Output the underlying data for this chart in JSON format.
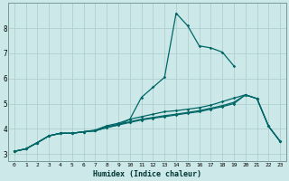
{
  "xlabel": "Humidex (Indice chaleur)",
  "bg_color": "#cce8e8",
  "line_color": "#006666",
  "grid_color": "#aacccc",
  "xlim": [
    -0.5,
    23.5
  ],
  "ylim": [
    2.7,
    9.0
  ],
  "xticks": [
    0,
    1,
    2,
    3,
    4,
    5,
    6,
    7,
    8,
    9,
    10,
    11,
    12,
    13,
    14,
    15,
    16,
    17,
    18,
    19,
    20,
    21,
    22,
    23
  ],
  "yticks": [
    3,
    4,
    5,
    6,
    7,
    8
  ],
  "line1_x": [
    0,
    1,
    2,
    3,
    4,
    5,
    6,
    7,
    8,
    9,
    10,
    11,
    12,
    13,
    14,
    15,
    16,
    17,
    18,
    19,
    20,
    21,
    22,
    23
  ],
  "line1_y": [
    3.1,
    3.2,
    3.45,
    3.72,
    3.82,
    3.82,
    3.88,
    3.92,
    4.05,
    4.15,
    4.25,
    4.35,
    4.42,
    4.48,
    4.55,
    4.62,
    4.68,
    4.78,
    4.88,
    5.0,
    5.35,
    5.2,
    4.1,
    3.5
  ],
  "line2_x": [
    0,
    1,
    2,
    3,
    4,
    5,
    6,
    7,
    8,
    9,
    10,
    11,
    12,
    13,
    14,
    15,
    16,
    17,
    18,
    19,
    20,
    21,
    22,
    23
  ],
  "line2_y": [
    3.1,
    3.2,
    3.45,
    3.72,
    3.82,
    3.82,
    3.88,
    3.92,
    4.05,
    4.15,
    4.38,
    5.25,
    5.65,
    6.05,
    8.6,
    8.1,
    7.3,
    7.22,
    7.05,
    6.5,
    null,
    null,
    null,
    null
  ],
  "line3_x": [
    0,
    1,
    2,
    3,
    4,
    5,
    6,
    7,
    8,
    9,
    10,
    11,
    12,
    13,
    14,
    15,
    16,
    17,
    18,
    19,
    20,
    21,
    22,
    23
  ],
  "line3_y": [
    3.1,
    3.2,
    3.45,
    3.72,
    3.82,
    3.82,
    3.88,
    3.92,
    4.08,
    4.18,
    4.28,
    4.38,
    4.45,
    4.52,
    4.58,
    4.65,
    4.72,
    4.82,
    4.92,
    5.05,
    5.35,
    5.2,
    4.1,
    3.5
  ],
  "line4_x": [
    0,
    1,
    2,
    3,
    4,
    5,
    6,
    7,
    8,
    9,
    10,
    11,
    12,
    13,
    14,
    15,
    16,
    17,
    18,
    19,
    20,
    21,
    22,
    23
  ],
  "line4_y": [
    3.1,
    3.2,
    3.45,
    3.72,
    3.82,
    3.82,
    3.88,
    3.95,
    4.12,
    4.22,
    4.38,
    4.48,
    4.58,
    4.68,
    4.72,
    4.78,
    4.84,
    4.94,
    5.08,
    5.22,
    5.35,
    5.2,
    4.1,
    3.5
  ]
}
